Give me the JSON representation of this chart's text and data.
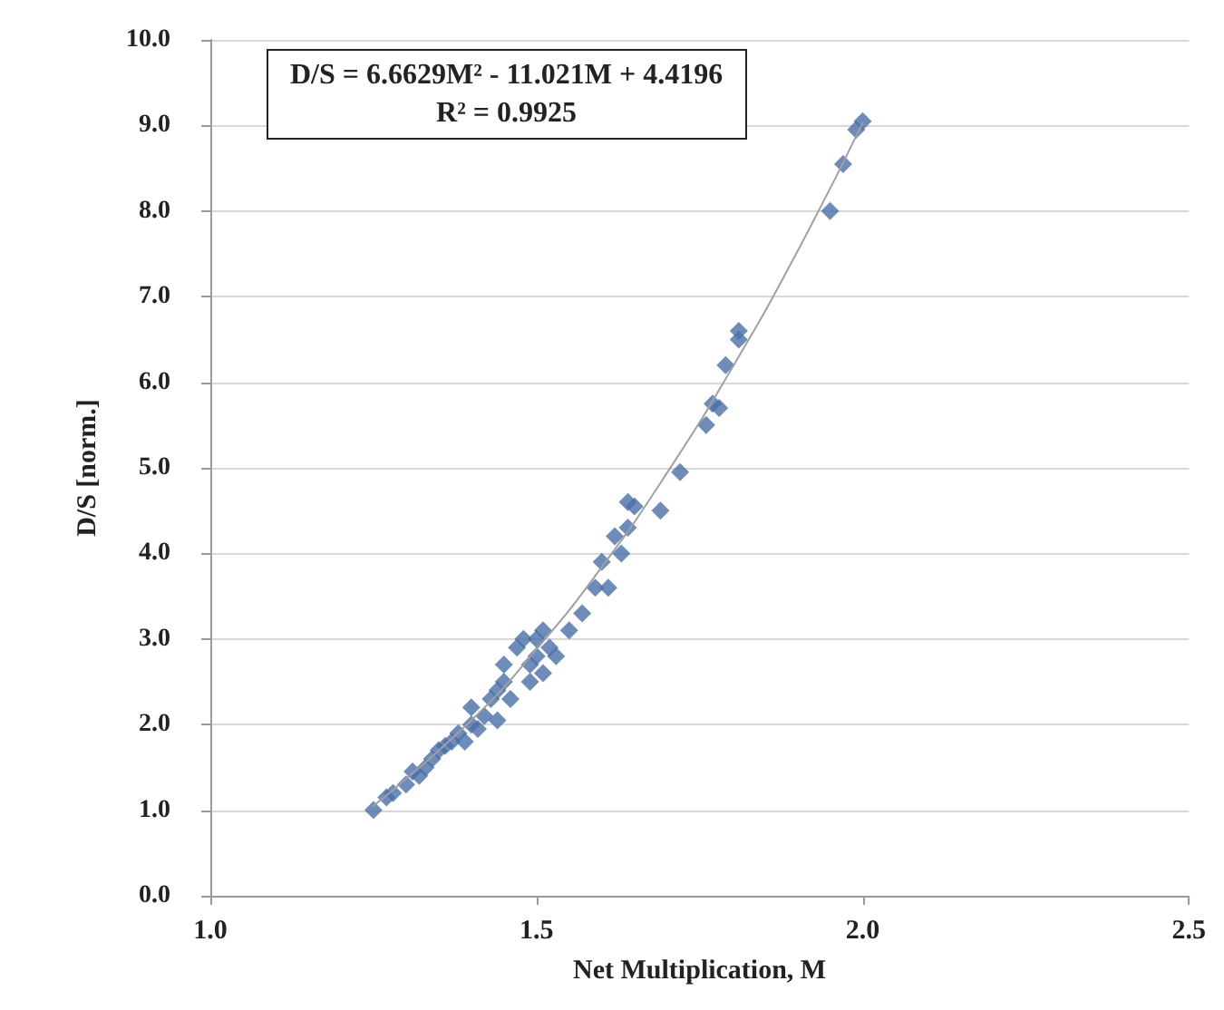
{
  "chart_data": {
    "type": "scatter",
    "xlabel": "Net Multiplication, M",
    "ylabel": "D/S [norm.]",
    "annotations": [
      "D/S = 6.6629M² - 11.021M + 4.4196",
      "R² = 0.9925"
    ],
    "xlim": [
      1.0,
      2.5
    ],
    "xticks": [
      {
        "value": 1,
        "label": "1.0"
      },
      1.5,
      {
        "value": 2,
        "label": "2.0"
      },
      2.5
    ],
    "ylim": [
      0,
      10
    ],
    "yticks": [
      {
        "value": 0,
        "label": "0.0"
      },
      {
        "value": 1,
        "label": "1.0"
      },
      {
        "value": 2,
        "label": "2.0"
      },
      {
        "value": 3,
        "label": "3.0"
      },
      {
        "value": 4,
        "label": "4.0"
      },
      {
        "value": 5,
        "label": "5.0"
      },
      {
        "value": 6,
        "label": "6.0"
      },
      {
        "value": 7,
        "label": "7.0"
      },
      {
        "value": 8,
        "label": "8.0"
      },
      {
        "value": 9,
        "label": "9.0"
      },
      {
        "value": 10,
        "label": "10.0"
      }
    ],
    "grid": "y",
    "marker": "diamond",
    "series": [
      {
        "color": "#4a6fa8",
        "x": [
          1.25,
          1.27,
          1.28,
          1.3,
          1.31,
          1.32,
          1.33,
          1.34,
          1.35,
          1.36,
          1.37,
          1.38,
          1.39,
          1.4,
          1.4,
          1.41,
          1.42,
          1.43,
          1.44,
          1.44,
          1.45,
          1.45,
          1.46,
          1.47,
          1.48,
          1.49,
          1.49,
          1.5,
          1.5,
          1.51,
          1.51,
          1.52,
          1.53,
          1.55,
          1.57,
          1.59,
          1.6,
          1.61,
          1.62,
          1.63,
          1.64,
          1.65,
          1.64,
          1.69,
          1.72,
          1.76,
          1.77,
          1.78,
          1.79,
          1.81,
          1.81,
          1.95,
          1.97,
          1.99,
          2.0
        ],
        "values": [
          1.0,
          1.15,
          1.2,
          1.3,
          1.45,
          1.4,
          1.5,
          1.6,
          1.7,
          1.75,
          1.8,
          1.9,
          1.8,
          2.0,
          2.2,
          1.95,
          2.1,
          2.3,
          2.05,
          2.4,
          2.5,
          2.7,
          2.3,
          2.9,
          3.0,
          2.7,
          2.5,
          2.8,
          3.0,
          3.1,
          2.6,
          2.9,
          2.8,
          3.1,
          3.3,
          3.6,
          3.9,
          3.6,
          4.2,
          4.0,
          4.6,
          4.55,
          4.3,
          4.5,
          4.95,
          5.5,
          5.75,
          5.7,
          6.2,
          6.5,
          6.6,
          8.0,
          8.55,
          8.95,
          9.05
        ]
      },
      {
        "type": "line",
        "color": "#a0a0a0",
        "marker": "none",
        "x": [
          1.25,
          1.4,
          1.5,
          1.6,
          1.7,
          1.8,
          1.9,
          2.0
        ],
        "values": [
          1.05,
          2.05,
          2.88,
          3.84,
          4.94,
          6.17,
          7.53,
          9.03
        ]
      }
    ]
  }
}
